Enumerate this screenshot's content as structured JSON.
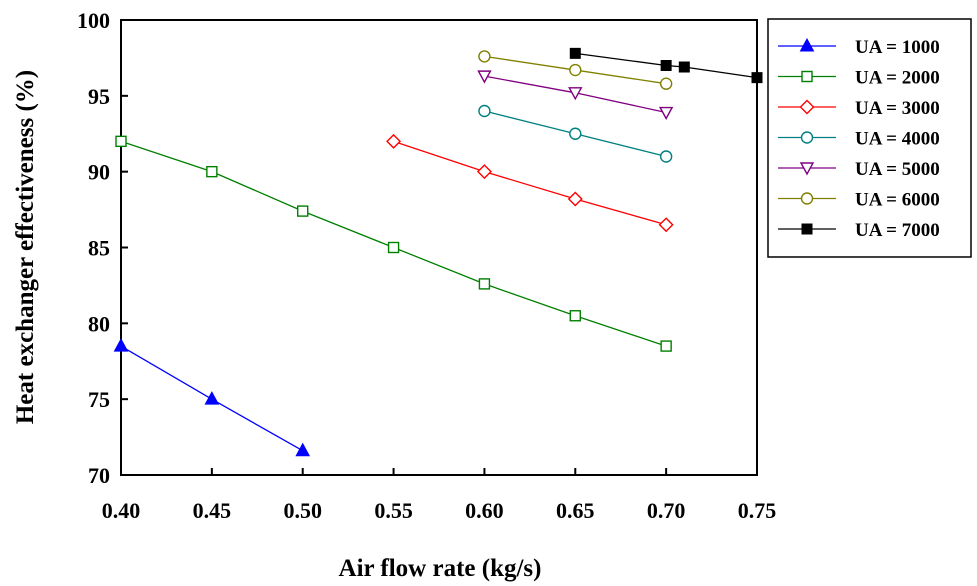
{
  "chart_data": {
    "type": "line",
    "title": "",
    "xlabel": "Air flow rate (kg/s)",
    "ylabel": "Heat exchanger effectiveness (%)",
    "xlim": [
      0.4,
      0.75
    ],
    "ylim": [
      70,
      100
    ],
    "xticks": [
      "0.40",
      "0.45",
      "0.50",
      "0.55",
      "0.60",
      "0.65",
      "0.70",
      "0.75"
    ],
    "yticks": [
      "70",
      "75",
      "80",
      "85",
      "90",
      "95",
      "100"
    ],
    "grid": false,
    "legend_position": "right",
    "series": [
      {
        "name": "UA = 1000",
        "color": "#0000ff",
        "marker": "triangle-up-filled",
        "points": [
          [
            0.4,
            78.5
          ],
          [
            0.45,
            75.0
          ],
          [
            0.5,
            71.6
          ]
        ]
      },
      {
        "name": "UA = 2000",
        "color": "#008000",
        "marker": "square-open",
        "points": [
          [
            0.4,
            92.0
          ],
          [
            0.45,
            90.0
          ],
          [
            0.5,
            87.4
          ],
          [
            0.55,
            85.0
          ],
          [
            0.6,
            82.6
          ],
          [
            0.65,
            80.5
          ],
          [
            0.7,
            78.5
          ]
        ]
      },
      {
        "name": "UA = 3000",
        "color": "#ff0000",
        "marker": "diamond-open",
        "points": [
          [
            0.55,
            92.0
          ],
          [
            0.6,
            90.0
          ],
          [
            0.65,
            88.2
          ],
          [
            0.7,
            86.5
          ]
        ]
      },
      {
        "name": "UA = 4000",
        "color": "#008080",
        "marker": "circle-open",
        "points": [
          [
            0.6,
            94.0
          ],
          [
            0.65,
            92.5
          ],
          [
            0.7,
            91.0
          ]
        ]
      },
      {
        "name": "UA = 5000",
        "color": "#800080",
        "marker": "triangle-down-open",
        "points": [
          [
            0.6,
            96.3
          ],
          [
            0.65,
            95.2
          ],
          [
            0.7,
            93.9
          ]
        ]
      },
      {
        "name": "UA = 6000",
        "color": "#808000",
        "marker": "circle-open",
        "points": [
          [
            0.6,
            97.6
          ],
          [
            0.65,
            96.7
          ],
          [
            0.7,
            95.8
          ]
        ]
      },
      {
        "name": "UA = 7000",
        "color": "#000000",
        "marker": "square-filled",
        "points": [
          [
            0.65,
            97.8
          ],
          [
            0.7,
            97.0
          ],
          [
            0.71,
            96.9
          ],
          [
            0.75,
            96.2
          ]
        ]
      }
    ]
  }
}
